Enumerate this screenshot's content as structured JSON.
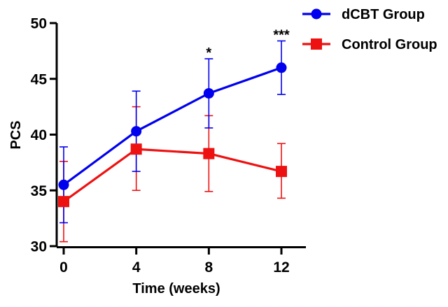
{
  "chart_data": {
    "type": "line",
    "xlabel": "Time (weeks)",
    "ylabel": "PCS",
    "xlim": [
      0,
      12
    ],
    "ylim": [
      30,
      50
    ],
    "x_ticks": [
      "0",
      "4",
      "8",
      "12"
    ],
    "y_ticks": [
      "30",
      "35",
      "40",
      "45",
      "50"
    ],
    "legend_position": "top-right",
    "series": [
      {
        "name": "dCBT Group",
        "color": "#0000ee",
        "marker": "circle",
        "x": [
          0,
          4,
          8,
          12
        ],
        "y": [
          35.5,
          40.3,
          43.7,
          46.0
        ],
        "error_upper": [
          38.9,
          43.9,
          46.8,
          48.4
        ],
        "error_lower": [
          32.1,
          36.7,
          40.6,
          43.6
        ]
      },
      {
        "name": "Control Group",
        "color": "#ee1111",
        "marker": "square",
        "x": [
          0,
          4,
          8,
          12
        ],
        "y": [
          34.0,
          38.7,
          38.3,
          36.7
        ],
        "error_upper": [
          37.6,
          42.5,
          41.7,
          39.2
        ],
        "error_lower": [
          30.4,
          35.0,
          34.9,
          34.3
        ]
      }
    ],
    "significance": [
      {
        "x": 8,
        "label": "*"
      },
      {
        "x": 12,
        "label": "***"
      }
    ]
  }
}
